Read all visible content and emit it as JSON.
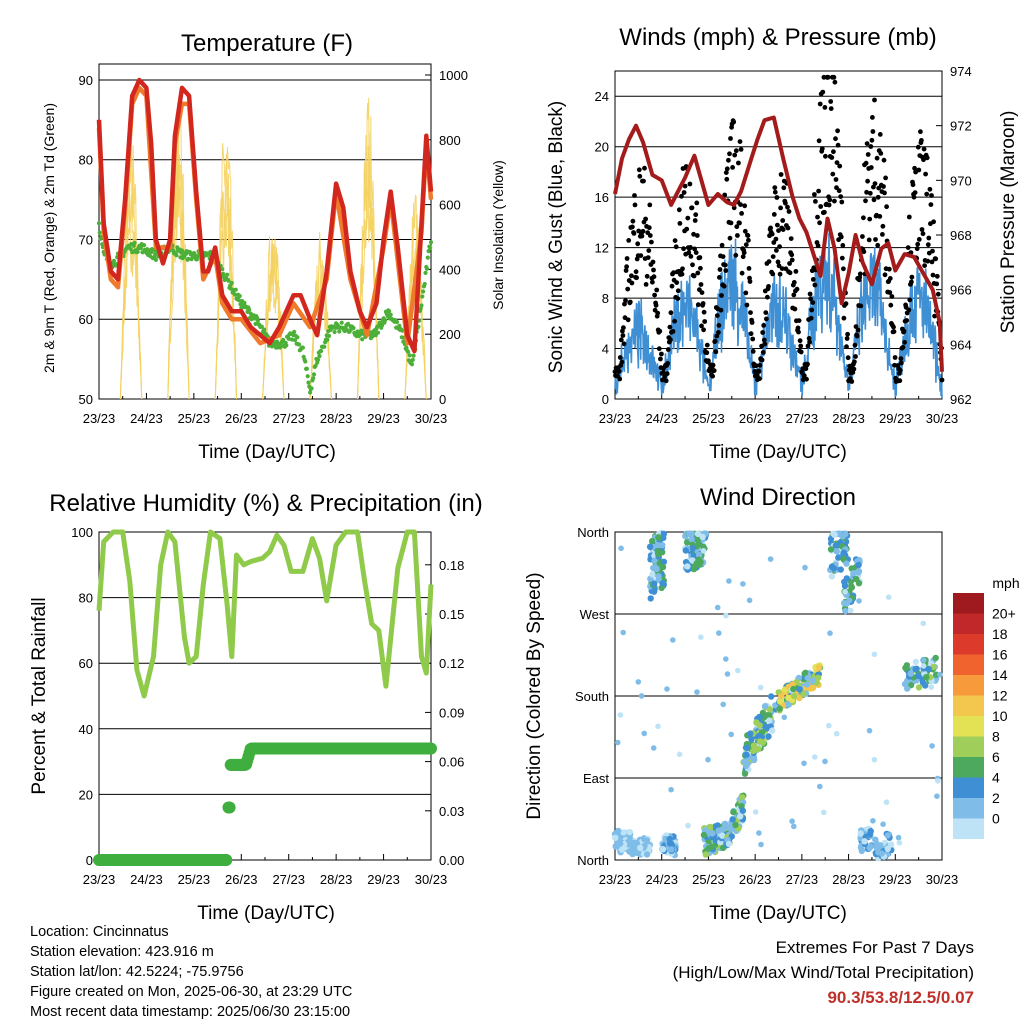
{
  "chart_data": [
    {
      "type": "line",
      "title": "Temperature (F)",
      "xlabel": "Time (Day/UTC)",
      "ylabel": "2m & 9m T (Red, Orange) & 2m Td (Green)",
      "y2label": "Solar Insolation (Yellow)",
      "x_ticks": [
        "23/23",
        "24/23",
        "25/23",
        "26/23",
        "27/23",
        "28/23",
        "29/23",
        "30/23"
      ],
      "ylim": [
        50,
        92
      ],
      "y_ticks": [
        50,
        60,
        70,
        80,
        90
      ],
      "y2lim": [
        0,
        1000
      ],
      "y2_ticks": [
        0,
        200,
        400,
        600,
        800,
        1000
      ],
      "series": [
        {
          "color": "#d2271e",
          "axis": "left",
          "x": [
            0,
            0.1,
            0.25,
            0.4,
            0.55,
            0.7,
            0.85,
            1.0,
            1.1,
            1.2,
            1.35,
            1.5,
            1.6,
            1.75,
            1.9,
            2.05,
            2.2,
            2.3,
            2.45,
            2.6,
            2.8,
            3.0,
            3.2,
            3.4,
            3.6,
            3.8,
            3.95,
            4.1,
            4.25,
            4.45,
            4.6,
            4.8,
            5.0,
            5.15,
            5.3,
            5.5,
            5.65,
            5.85,
            6.0,
            6.15,
            6.3,
            6.5,
            6.65,
            6.8,
            6.9,
            7.0
          ],
          "y": [
            85,
            72,
            66,
            65,
            75,
            88,
            90,
            89,
            82,
            70,
            67,
            70,
            83,
            89,
            88,
            76,
            66,
            66,
            69,
            63,
            61,
            61,
            59,
            58,
            57,
            59,
            61,
            63,
            63,
            60,
            58,
            66,
            77,
            74,
            66,
            61,
            59,
            62,
            70,
            76,
            69,
            58,
            56,
            72,
            83,
            76
          ]
        },
        {
          "color": "#f07a2c",
          "axis": "left",
          "x": [
            0,
            0.1,
            0.25,
            0.4,
            0.55,
            0.7,
            0.85,
            1.0,
            1.2,
            1.5,
            1.6,
            1.75,
            1.9,
            2.05,
            2.2,
            2.45,
            2.6,
            2.8,
            3.0,
            3.4,
            3.8,
            4.1,
            4.45,
            4.8,
            5.0,
            5.3,
            5.65,
            6.0,
            6.15,
            6.5,
            6.8,
            6.9,
            7.0
          ],
          "y": [
            84,
            71,
            65,
            64,
            74,
            87,
            89,
            88,
            69,
            69,
            82,
            87,
            87,
            75,
            65,
            68,
            62,
            60,
            60,
            57,
            58,
            62,
            59,
            65,
            76,
            65,
            58,
            69,
            75,
            57,
            71,
            82,
            75
          ]
        },
        {
          "color": "#4caf38",
          "axis": "left",
          "x": [
            0,
            0.1,
            0.3,
            0.6,
            0.9,
            1.2,
            1.5,
            1.8,
            2.1,
            2.4,
            2.6,
            2.8,
            3.0,
            3.3,
            3.6,
            3.9,
            4.1,
            4.3,
            4.45,
            4.6,
            4.9,
            5.2,
            5.5,
            5.8,
            6.1,
            6.4,
            6.6,
            6.8,
            7.0
          ],
          "y": [
            72,
            68,
            67,
            69,
            69,
            68,
            69,
            68,
            68,
            68,
            66,
            64,
            62,
            60,
            57,
            57,
            58,
            56,
            51,
            55,
            59,
            59,
            58,
            58,
            61,
            58,
            54,
            62,
            70
          ]
        },
        {
          "color": "#f4d160",
          "axis": "right",
          "type": "diurnal",
          "peaks": [
            850,
            960,
            900,
            600,
            550,
            950,
            650,
            950
          ]
        }
      ]
    },
    {
      "type": "scatter",
      "title": "Winds (mph) & Pressure (mb)",
      "xlabel": "Time (Day/UTC)",
      "ylabel": "Sonic Wind & Gust (Blue, Black)",
      "y2label": "Station Pressure (Maroon)",
      "x_ticks": [
        "23/23",
        "24/23",
        "25/23",
        "26/23",
        "27/23",
        "28/23",
        "29/23",
        "30/23"
      ],
      "ylim": [
        0,
        26
      ],
      "y_ticks": [
        0,
        4,
        8,
        12,
        16,
        20,
        24
      ],
      "y2lim": [
        962,
        974
      ],
      "y2_ticks": [
        962,
        964,
        966,
        968,
        970,
        972,
        974
      ],
      "pressure": {
        "color": "#a31b1b",
        "x": [
          0,
          0.15,
          0.3,
          0.45,
          0.6,
          0.8,
          1.0,
          1.2,
          1.35,
          1.5,
          1.7,
          1.85,
          2.0,
          2.2,
          2.4,
          2.55,
          2.7,
          2.9,
          3.05,
          3.2,
          3.4,
          3.6,
          3.8,
          3.95,
          4.1,
          4.25,
          4.4,
          4.55,
          4.7,
          4.85,
          5.0,
          5.15,
          5.3,
          5.5,
          5.7,
          5.85,
          6.0,
          6.2,
          6.4,
          6.6,
          6.8,
          6.95,
          7.0
        ],
        "y": [
          969.5,
          970.8,
          971.5,
          972.0,
          971.4,
          970.2,
          970.0,
          969.1,
          969.6,
          970.1,
          970.9,
          970.0,
          969.1,
          969.5,
          969.2,
          969.1,
          969.6,
          970.7,
          971.5,
          972.2,
          972.3,
          970.8,
          969.4,
          968.6,
          968.1,
          967.3,
          966.5,
          968.6,
          967.5,
          965.5,
          966.6,
          968.0,
          967.0,
          966.2,
          967.5,
          967.7,
          966.7,
          967.3,
          967.2,
          966.6,
          966.0,
          964.8,
          963.0
        ]
      },
      "gust_color": "#000000",
      "wind_color": "#3f8fd4",
      "gust_peaks": [
        15,
        15,
        18,
        15,
        24,
        20,
        17,
        15
      ],
      "wind_peaks": [
        6,
        9,
        12,
        9,
        13,
        11,
        10,
        9
      ]
    },
    {
      "type": "line",
      "title": "Relative Humidity (%) & Precipitation (in)",
      "xlabel": "Time (Day/UTC)",
      "ylabel": "Percent & Total Rainfall",
      "x_ticks": [
        "23/23",
        "24/23",
        "25/23",
        "26/23",
        "27/23",
        "28/23",
        "29/23",
        "30/23"
      ],
      "ylim": [
        0,
        100
      ],
      "y_ticks": [
        0,
        20,
        40,
        60,
        80,
        100
      ],
      "y2lim": [
        0,
        0.2
      ],
      "y2_ticks": [
        "0.00",
        "0.03",
        "0.06",
        "0.09",
        "0.12",
        "0.15",
        "0.18"
      ],
      "series": [
        {
          "color": "#8fca4a",
          "axis": "left",
          "x": [
            0,
            0.1,
            0.3,
            0.5,
            0.65,
            0.8,
            0.95,
            1.15,
            1.3,
            1.45,
            1.6,
            1.8,
            1.9,
            2.05,
            2.2,
            2.35,
            2.55,
            2.7,
            2.8,
            2.9,
            3.05,
            3.2,
            3.45,
            3.6,
            3.75,
            3.9,
            4.05,
            4.3,
            4.5,
            4.65,
            4.8,
            5.0,
            5.2,
            5.45,
            5.6,
            5.75,
            5.9,
            6.05,
            6.3,
            6.5,
            6.65,
            6.8,
            6.9,
            7.0
          ],
          "y": [
            76,
            97,
            100,
            100,
            85,
            58,
            50,
            62,
            90,
            100,
            97,
            68,
            60,
            62,
            84,
            100,
            98,
            78,
            62,
            93,
            90,
            91,
            92,
            94,
            99,
            96,
            88,
            88,
            98,
            92,
            79,
            96,
            100,
            100,
            85,
            72,
            70,
            53,
            89,
            100,
            100,
            62,
            57,
            84
          ]
        },
        {
          "color": "#3fae3f",
          "axis": "right",
          "x": [
            0,
            2.7,
            2.7,
            2.75,
            2.75,
            3.1,
            3.2,
            3.5,
            7.0
          ],
          "y": [
            0,
            0,
            0.032,
            0.032,
            0.058,
            0.058,
            0.068,
            0.068,
            0.068
          ]
        }
      ]
    },
    {
      "type": "scatter",
      "title": "Wind Direction",
      "xlabel": "Time (Day/UTC)",
      "ylabel": "Direction (Colored By Speed)",
      "x_ticks": [
        "23/23",
        "24/23",
        "25/23",
        "26/23",
        "27/23",
        "28/23",
        "29/23",
        "30/23"
      ],
      "y_ticks": [
        "North",
        "East",
        "South",
        "West",
        "North"
      ],
      "ylim": [
        0,
        360
      ],
      "legend": {
        "title": "mph",
        "labels": [
          "20+",
          "18",
          "16",
          "14",
          "12",
          "10",
          "8",
          "6",
          "4",
          "2",
          "0"
        ],
        "colors": [
          "#9e1a1e",
          "#c0282a",
          "#dc3b2c",
          "#f0632e",
          "#f69a3c",
          "#f3c64e",
          "#e3e255",
          "#9fcf5a",
          "#4ca95e",
          "#3f8fd4",
          "#7fbde8",
          "#bfe3f6"
        ]
      }
    }
  ],
  "footer": {
    "location": "Location: Cincinnatus",
    "elevation": "Station elevation: 423.916 m",
    "latlon": "Station lat/lon: 42.5224; -75.9756",
    "created": "Figure created on Mon, 2025-06-30, at 23:29 UTC",
    "recent": "Most recent data timestamp: 2025/06/30 23:15:00"
  },
  "extremes": {
    "title": "Extremes For Past 7 Days",
    "subtitle": "(High/Low/Max Wind/Total Precipitation)",
    "values": "90.3/53.8/12.5/0.07"
  }
}
